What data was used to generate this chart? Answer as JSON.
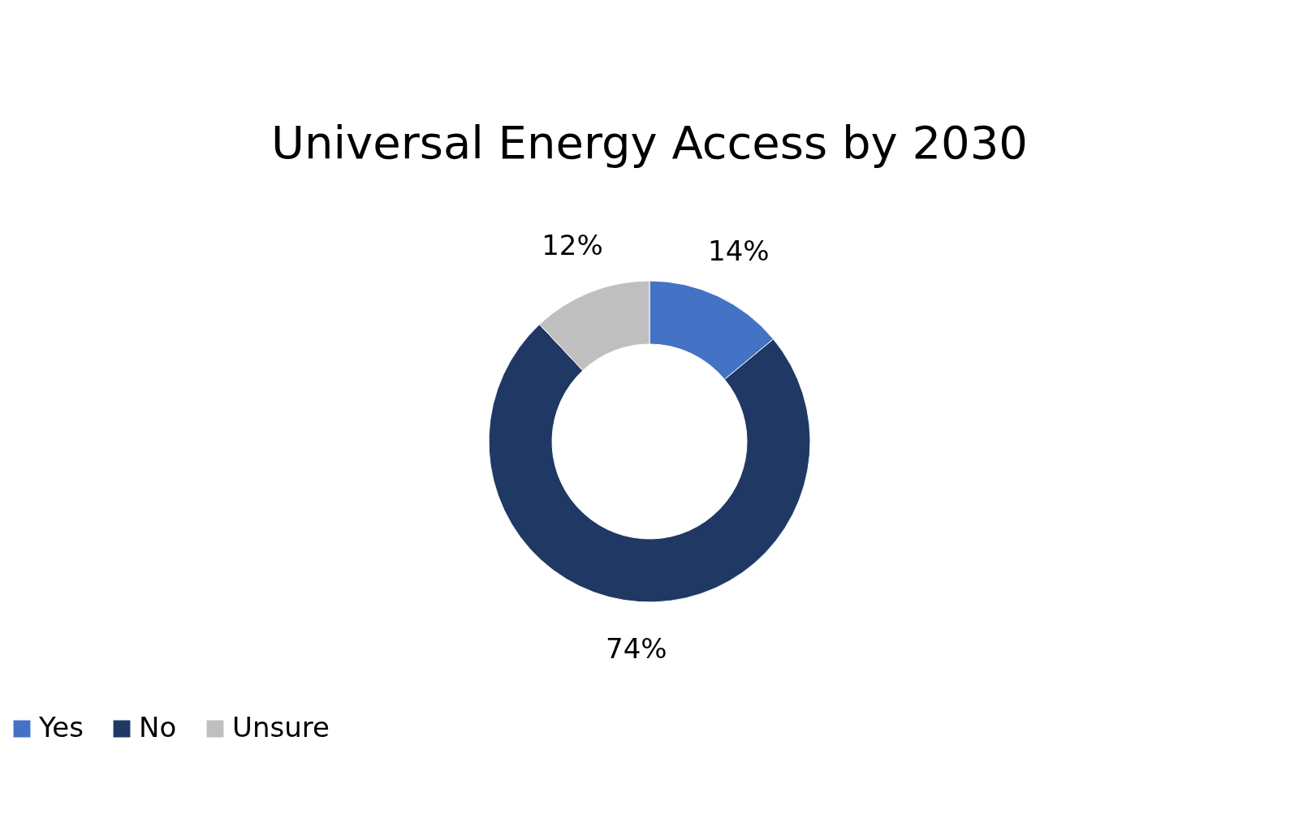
{
  "chart_data": {
    "type": "donut",
    "title": "Universal Energy Access by 2030",
    "categories": [
      "Yes",
      "No",
      "Unsure"
    ],
    "values": [
      14,
      74,
      12
    ],
    "colors": [
      "#4472c4",
      "#203864",
      "#bfbfbf"
    ],
    "value_labels": [
      "14%",
      "74%",
      "12%"
    ],
    "legend": "bottom"
  }
}
